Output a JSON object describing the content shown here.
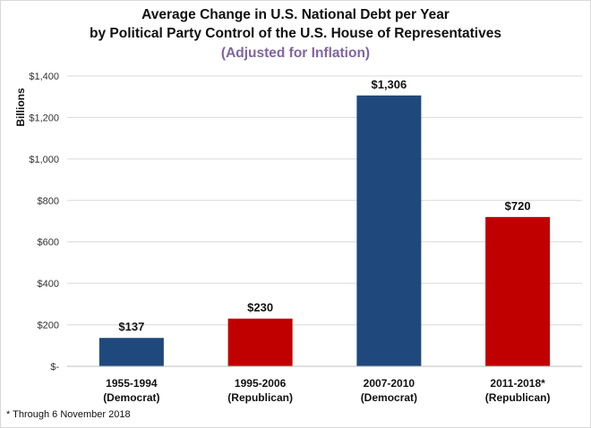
{
  "chart_data": {
    "type": "bar",
    "title": "Average Change in U.S. National Debt per Year",
    "title_line2": "by Political Party Control of the U.S. House of Representatives",
    "subtitle": "(Adjusted for Inflation)",
    "xlabel": "",
    "ylabel": "Billions",
    "ylim": [
      0,
      1400
    ],
    "yticks": [
      0,
      200,
      400,
      600,
      800,
      1000,
      1200,
      1400
    ],
    "ytick_labels": [
      "$-",
      "$200",
      "$400",
      "$600",
      "$800",
      "$1,000",
      "$1,200",
      "$1,400"
    ],
    "grid": true,
    "categories": [
      [
        "1955-1994",
        "(Democrat)"
      ],
      [
        "1995-2006",
        "(Republican)"
      ],
      [
        "2007-2010",
        "(Democrat)"
      ],
      [
        "2011-2018*",
        "(Republican)"
      ]
    ],
    "values": [
      137,
      230,
      1306,
      720
    ],
    "data_labels": [
      "$137",
      "$230",
      "$1,306",
      "$720"
    ],
    "bar_colors": [
      "#1f497d",
      "#c00000",
      "#1f497d",
      "#c00000"
    ],
    "footnote": "* Through 6 November 2018"
  },
  "colors": {
    "democrat": "#1f497d",
    "republican": "#c00000",
    "subtitle": "#8064a2",
    "grid": "#d9d9d9"
  }
}
